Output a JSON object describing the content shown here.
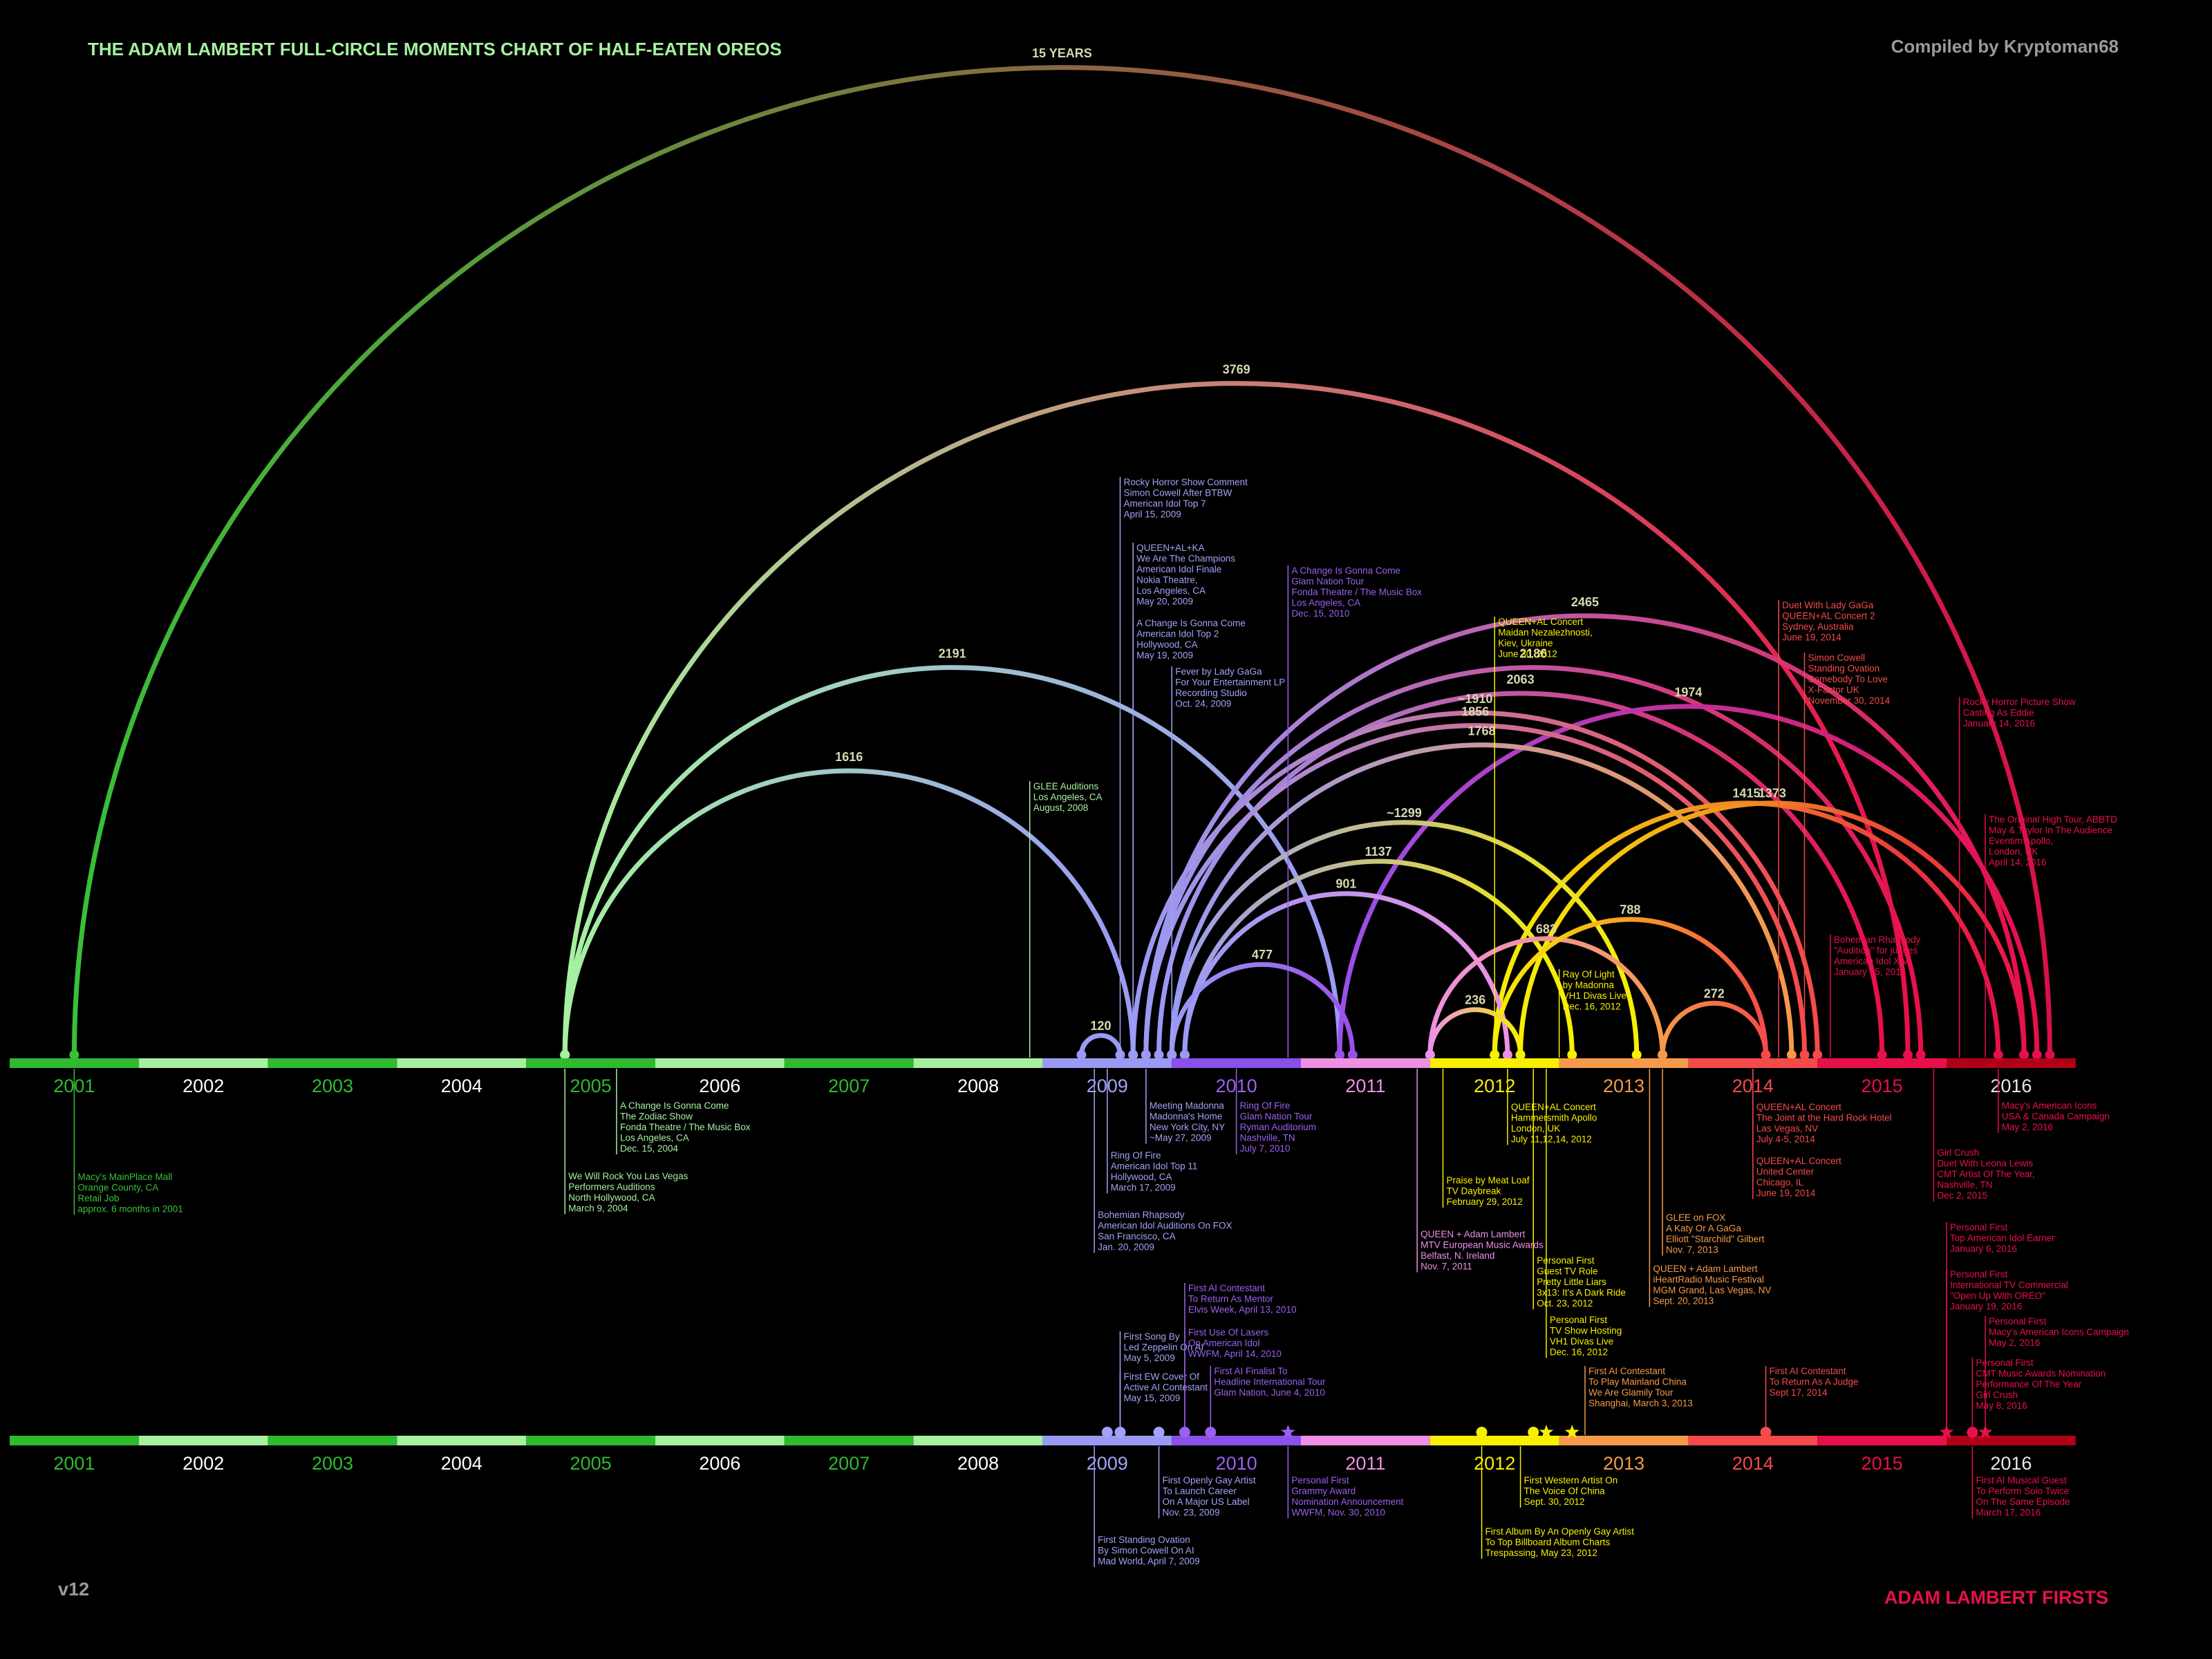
{
  "header": {
    "title": "THE ADAM LAMBERT FULL-CIRCLE MOMENTS CHART OF HALF-EATEN OREOS",
    "credit": "Compiled by Kryptoman68"
  },
  "footer": {
    "version": "v12",
    "firsts_title": "ADAM LAMBERT FIRSTS"
  },
  "years": [
    "2001",
    "2002",
    "2003",
    "2004",
    "2005",
    "2006",
    "2007",
    "2008",
    "2009",
    "2010",
    "2011",
    "2012",
    "2013",
    "2014",
    "2015",
    "2016"
  ],
  "year_colors": [
    "#2fba2f",
    "#a6f0a0",
    "#2fba2f",
    "#a6f0a0",
    "#2fba2f",
    "#a6f0a0",
    "#2fba2f",
    "#a6f0a0",
    "#9a9af4",
    "#8a50ea",
    "#ee90e6",
    "#f8f000",
    "#f59a4a",
    "#f64a4a",
    "#e8104a",
    "#b00018"
  ],
  "year_text_colors": [
    "#2fba2f",
    "#ffffff",
    "#2fba2f",
    "#ffffff",
    "#2fba2f",
    "#ffffff",
    "#2fba2f",
    "#ffffff",
    "#a2a2f8",
    "#9a60f0",
    "#ee90e6",
    "#f8f000",
    "#f59a4a",
    "#f64a4a",
    "#e8104a",
    "#e8e8e8"
  ],
  "arcs": [
    {
      "label": "15 YEARS",
      "from": 2001.0,
      "to": 2016.3,
      "color_from": "#38c038",
      "color_to": "#d8104a"
    },
    {
      "label": "3769",
      "from": 2004.8,
      "to": 2015.2,
      "color_from": "#a6f0a0",
      "color_to": "#e8104a"
    },
    {
      "label": "2191",
      "from": 2004.8,
      "to": 2010.8,
      "color_from": "#a6f0a0",
      "color_to": "#9a9af4"
    },
    {
      "label": "1616",
      "from": 2004.8,
      "to": 2009.2,
      "color_from": "#a6f0a0",
      "color_to": "#9a9af4"
    },
    {
      "label": "2465",
      "from": 2009.3,
      "to": 2016.1,
      "color_from": "#9a9af4",
      "color_to": "#e8104a"
    },
    {
      "label": "2186",
      "from": 2009.3,
      "to": 2015.3,
      "color_from": "#9a9af4",
      "color_to": "#e8104a"
    },
    {
      "label": "2063",
      "from": 2009.4,
      "to": 2015.0,
      "color_from": "#9a9af4",
      "color_to": "#e8104a"
    },
    {
      "label": "1974",
      "from": 2010.8,
      "to": 2016.2,
      "color_from": "#9a50ea",
      "color_to": "#e8104a"
    },
    {
      "label": "~1910",
      "from": 2009.2,
      "to": 2014.5,
      "color_from": "#9a9af4",
      "color_to": "#f64a4a"
    },
    {
      "label": "1856",
      "from": 2009.3,
      "to": 2014.4,
      "color_from": "#9a9af4",
      "color_to": "#f64a4a"
    },
    {
      "label": "1768",
      "from": 2009.5,
      "to": 2014.3,
      "color_from": "#9a9af4",
      "color_to": "#f59a4a"
    },
    {
      "label": "1415",
      "from": 2012.0,
      "to": 2015.9,
      "color_from": "#f8f000",
      "color_to": "#e8104a"
    },
    {
      "label": "1373",
      "from": 2012.2,
      "to": 2016.1,
      "color_from": "#f8f000",
      "color_to": "#e8104a"
    },
    {
      "label": "~1299",
      "from": 2009.5,
      "to": 2013.1,
      "color_from": "#9a9af4",
      "color_to": "#f8f000"
    },
    {
      "label": "1137",
      "from": 2009.6,
      "to": 2012.6,
      "color_from": "#9a9af4",
      "color_to": "#f8f000"
    },
    {
      "label": "901",
      "from": 2009.6,
      "to": 2012.1,
      "color_from": "#9a9af4",
      "color_to": "#ee90e6"
    },
    {
      "label": "683",
      "from": 2011.5,
      "to": 2013.3,
      "color_from": "#ee90e6",
      "color_to": "#f59a4a"
    },
    {
      "label": "788",
      "from": 2012.0,
      "to": 2014.1,
      "color_from": "#f8f000",
      "color_to": "#f64a4a"
    },
    {
      "label": "477",
      "from": 2009.5,
      "to": 2010.9,
      "color_from": "#9a9af4",
      "color_to": "#9a50ea"
    },
    {
      "label": "236",
      "from": 2011.5,
      "to": 2012.2,
      "color_from": "#ee90e6",
      "color_to": "#f8f000"
    },
    {
      "label": "272",
      "from": 2013.3,
      "to": 2014.1,
      "color_from": "#f59a4a",
      "color_to": "#f64a4a"
    },
    {
      "label": "120",
      "from": 2008.8,
      "to": 2009.1,
      "color_from": "#9a9af4",
      "color_to": "#9a9af4"
    }
  ],
  "annotations": [
    {
      "lines": [
        "Macy's MainPlace Mall",
        "Orange County, CA",
        "Retail Job",
        "approx. 6 months in 2001"
      ],
      "color": "#38c038",
      "date": 2001.0,
      "side": "below",
      "anchor": 1707
    },
    {
      "lines": [
        "We Will Rock You Las Vegas",
        "Performers Auditions",
        "North Hollywood, CA",
        "March 9, 2004"
      ],
      "color": "#a6f0a0",
      "date": 2004.8,
      "side": "below",
      "anchor": 1706
    },
    {
      "lines": [
        "A Change Is Gonna Come",
        "The Zodiac Show",
        "Fonda Theatre / The Music Box",
        "Los Angeles, CA",
        "Dec. 15, 2004"
      ],
      "color": "#a6f0a0",
      "date": 2005.2,
      "side": "below",
      "anchor": 1604
    },
    {
      "lines": [
        "GLEE Auditions",
        "Los Angeles, CA",
        "August, 2008"
      ],
      "color": "#a6f0a0",
      "date": 2008.4,
      "side": "above",
      "anchor": 1142
    },
    {
      "lines": [
        "Rocky Horror Show Comment",
        "Simon Cowell After BTBW",
        "American Idol Top 7",
        "April 15, 2009"
      ],
      "color": "#a2a2f8",
      "date": 2009.1,
      "side": "above",
      "anchor": 702
    },
    {
      "lines": [
        "QUEEN+AL+KA",
        "We Are The Champions",
        "American Idol Finale",
        "Nokia Theatre,",
        "Los Angeles, CA",
        "May 20, 2009"
      ],
      "color": "#a2a2f8",
      "date": 2009.2,
      "side": "above",
      "anchor": 797
    },
    {
      "lines": [
        "A Change Is Gonna Come",
        "American Idol Top 2",
        "Hollywood, CA",
        "May 19, 2009"
      ],
      "color": "#a2a2f8",
      "date": 2009.2,
      "side": "above",
      "anchor": 906
    },
    {
      "lines": [
        "Fever by Lady GaGa",
        "For Your Entertainment LP",
        "Recording Studio",
        "Oct. 24, 2009"
      ],
      "color": "#a2a2f8",
      "date": 2009.5,
      "side": "above",
      "anchor": 976
    },
    {
      "lines": [
        "A Change Is Gonna Come",
        "Glam Nation Tour",
        "Fonda Theatre / The Music Box",
        "Los Angeles, CA",
        "Dec. 15, 2010"
      ],
      "color": "#9a60f0",
      "date": 2010.4,
      "side": "above",
      "anchor": 830
    },
    {
      "lines": [
        "QUEEN+AL Concert",
        "Maidan Nezalezhnosti,",
        "Kiev, Ukraine",
        "June 30, 2012"
      ],
      "color": "#f8f000",
      "date": 2012.0,
      "side": "above",
      "anchor": 904
    },
    {
      "lines": [
        "Duet With Lady GaGa",
        "QUEEN+AL Concert 2",
        "Sydney, Australia",
        "June 19, 2014"
      ],
      "color": "#f64a4a",
      "date": 2014.2,
      "side": "above",
      "anchor": 880
    },
    {
      "lines": [
        "Simon Cowell",
        "Standing Ovation",
        "Somebody To Love",
        "X-Factor UK",
        "November 30, 2014"
      ],
      "color": "#f64a4a",
      "date": 2014.4,
      "side": "above",
      "anchor": 956
    },
    {
      "lines": [
        "Rocky Horror Picture Show",
        "Casting As Eddie",
        "January 14, 2016"
      ],
      "color": "#e8104a",
      "date": 2015.6,
      "side": "above",
      "anchor": 1020
    },
    {
      "lines": [
        "The Original High Tour, ABBTD",
        "May & Taylor In The Audience",
        "Eventim Apollo,",
        "London, UK",
        "April 14, 2016"
      ],
      "color": "#e8104a",
      "date": 2015.8,
      "side": "above",
      "anchor": 1190
    },
    {
      "lines": [
        "Bohemian Rhapsody",
        "\"Audition\" for judges",
        "American Idol XIV",
        "January 15, 2015"
      ],
      "color": "#e8104a",
      "date": 2014.6,
      "side": "above",
      "anchor": 1364
    },
    {
      "lines": [
        "Ray Of Light",
        "by Madonna",
        "VH1 Divas Live",
        "Dec. 16, 2012"
      ],
      "color": "#f8f000",
      "date": 2012.5,
      "side": "above",
      "anchor": 1414
    },
    {
      "lines": [
        "Meeting Madonna",
        "Madonna's Home",
        "New York City, NY",
        "~May 27, 2009"
      ],
      "color": "#a2a2f8",
      "date": 2009.3,
      "side": "below",
      "anchor": 1604
    },
    {
      "lines": [
        "Ring Of Fire",
        "Glam Nation Tour",
        "Ryman Auditorium",
        "Nashville, TN",
        "July 7, 2010"
      ],
      "color": "#9a60f0",
      "date": 2010.0,
      "side": "below",
      "anchor": 1604
    },
    {
      "lines": [
        "Ring Of Fire",
        "American Idol Top 11",
        "Hollywood, CA",
        "March 17, 2009"
      ],
      "color": "#a2a2f8",
      "date": 2009.0,
      "side": "below",
      "anchor": 1676
    },
    {
      "lines": [
        "Bohemian Rhapsody",
        "American Idol Auditions On FOX",
        "San Francisco, CA",
        "Jan. 20, 2009"
      ],
      "color": "#a2a2f8",
      "date": 2008.9,
      "side": "below",
      "anchor": 1762
    },
    {
      "lines": [
        "QUEEN+AL Concert",
        "Hammersmith Apollo",
        "London, UK",
        "July 11,12,14, 2012"
      ],
      "color": "#f8f000",
      "date": 2012.1,
      "side": "below",
      "anchor": 1606
    },
    {
      "lines": [
        "Praise by Meat Loaf",
        "TV Daybreak",
        "February 29, 2012"
      ],
      "color": "#f8f000",
      "date": 2011.6,
      "side": "below",
      "anchor": 1712
    },
    {
      "lines": [
        "QUEEN + Adam Lambert",
        "MTV European Music Awards",
        "Belfast, N. Ireland",
        "Nov. 7, 2011"
      ],
      "color": "#ee90e6",
      "date": 2011.4,
      "side": "below",
      "anchor": 1790
    },
    {
      "lines": [
        "Personal First",
        "Guest TV Role",
        "Pretty Little Liars",
        "3x13: It's A Dark Ride",
        "Oct. 23, 2012"
      ],
      "color": "#f8f000",
      "date": 2012.3,
      "side": "below",
      "anchor": 1828
    },
    {
      "lines": [
        "Personal First",
        "TV Show Hosting",
        "VH1 Divas Live",
        "Dec. 16, 2012"
      ],
      "color": "#f8f000",
      "date": 2012.4,
      "side": "below",
      "anchor": 1914
    },
    {
      "lines": [
        "QUEEN+AL Concert",
        "The Joint at the Hard Rock Hotel",
        "Las Vegas, NV",
        "July 4-5, 2014"
      ],
      "color": "#f64a4a",
      "date": 2014.0,
      "side": "below",
      "anchor": 1606
    },
    {
      "lines": [
        "QUEEN+AL Concert",
        "United Center",
        "Chicago, IL",
        "June 19, 2014"
      ],
      "color": "#f64a4a",
      "date": 2014.0,
      "side": "below",
      "anchor": 1684
    },
    {
      "lines": [
        "GLEE on FOX",
        "A Katy Or A GaGa",
        "Elliott \"Starchild\" Gilbert",
        "Nov. 7, 2013"
      ],
      "color": "#f59a4a",
      "date": 2013.3,
      "side": "below",
      "anchor": 1766
    },
    {
      "lines": [
        "QUEEN + Adam Lambert",
        "iHeartRadio Music Festival",
        "MGM Grand, Las Vegas, NV",
        "Sept. 20, 2013"
      ],
      "color": "#f59a4a",
      "date": 2013.2,
      "side": "below",
      "anchor": 1840
    },
    {
      "lines": [
        "Macy's American Icons",
        "USA & Canada Campaign",
        "May 2, 2016"
      ],
      "color": "#e8104a",
      "date": 2015.9,
      "side": "below",
      "anchor": 1604
    },
    {
      "lines": [
        "Girl Crush",
        "Duet With Leona Lewis",
        "CMT Artist Of The Year,",
        "Nashville, TN",
        "Dec 2, 2015"
      ],
      "color": "#e8104a",
      "date": 2015.4,
      "side": "below",
      "anchor": 1672
    }
  ],
  "firsts": [
    {
      "lines": [
        "First Song By",
        "Led Zeppelin On AI",
        "May 5, 2009"
      ],
      "color": "#a2a2f8",
      "date": 2009.1,
      "side": "above",
      "anchor": 1938
    },
    {
      "lines": [
        "First EW Cover Of",
        "Active AI Contestant",
        "May 15, 2009"
      ],
      "color": "#a2a2f8",
      "date": 2009.1,
      "side": "above",
      "anchor": 1996
    },
    {
      "lines": [
        "First AI Contestant",
        "To Return As Mentor",
        "Elvis Week, April 13, 2010"
      ],
      "color": "#9a60f0",
      "date": 2009.6,
      "side": "above",
      "anchor": 1868
    },
    {
      "lines": [
        "First Use Of Lasers",
        "On American Idol",
        "WWFM, April 14, 2010"
      ],
      "color": "#9a60f0",
      "date": 2009.6,
      "side": "above",
      "anchor": 1932
    },
    {
      "lines": [
        "First AI Finalist To",
        "Headline International Tour",
        "Glam Nation, June 4, 2010"
      ],
      "color": "#9a60f0",
      "date": 2009.8,
      "side": "above",
      "anchor": 1988
    },
    {
      "lines": [
        "First AI Contestant",
        "To Play Mainland China",
        "We Are Glamily Tour",
        "Shanghai, March 3, 2013"
      ],
      "color": "#f59a4a",
      "date": 2012.7,
      "side": "above",
      "anchor": 1988
    },
    {
      "lines": [
        "First AI Contestant",
        "To Return As A Judge",
        "Sept 17, 2014"
      ],
      "color": "#f64a4a",
      "date": 2014.1,
      "side": "above",
      "anchor": 1988
    },
    {
      "lines": [
        "Personal First",
        "Top American Idol Earner",
        "January 6, 2016"
      ],
      "color": "#e8104a",
      "date": 2015.5,
      "side": "above",
      "anchor": 1780
    },
    {
      "lines": [
        "Personal First",
        "International TV Commercial",
        "\"Open Up With OREO\"",
        "January 19, 2016"
      ],
      "color": "#e8104a",
      "date": 2015.5,
      "side": "above",
      "anchor": 1848
    },
    {
      "lines": [
        "Personal First",
        "Macy's American Icons Campaign",
        "May 2, 2016"
      ],
      "color": "#e8104a",
      "date": 2015.8,
      "side": "above",
      "anchor": 1916
    },
    {
      "lines": [
        "Personal First",
        "CMT Music Awards Nomination",
        "Performance Of The Year",
        "Girl Crush",
        "May 8, 2016"
      ],
      "color": "#e8104a",
      "date": 2015.7,
      "side": "above",
      "anchor": 1976
    },
    {
      "lines": [
        "First Openly Gay Artist",
        "To Launch Career",
        "On A Major US Label",
        "Nov. 23, 2009"
      ],
      "color": "#a2a2f8",
      "date": 2009.4,
      "side": "below",
      "anchor": 2146
    },
    {
      "lines": [
        "Personal First",
        "Grammy Award",
        "Nomination Announcement",
        "WWFM, Nov. 30, 2010"
      ],
      "color": "#9a60f0",
      "date": 2010.4,
      "side": "below",
      "anchor": 2146
    },
    {
      "lines": [
        "First Standing Ovation",
        "By Simon Cowell On AI",
        "Mad World, April 7, 2009"
      ],
      "color": "#a2a2f8",
      "date": 2008.9,
      "side": "below",
      "anchor": 2232
    },
    {
      "lines": [
        "First Western Artist On",
        "The Voice Of China",
        "Sept. 30, 2012"
      ],
      "color": "#f8f000",
      "date": 2012.2,
      "side": "below",
      "anchor": 2146
    },
    {
      "lines": [
        "First Album By An Openly Gay Artist",
        "To Top Billboard Album Charts",
        "Trespassing, May 23, 2012"
      ],
      "color": "#f8f000",
      "date": 2011.9,
      "side": "below",
      "anchor": 2220
    },
    {
      "lines": [
        "First AI Musical Guest",
        "To Perform Solo Twice",
        "On The Same Episode",
        "March 17, 2016"
      ],
      "color": "#e8104a",
      "date": 2015.7,
      "side": "below",
      "anchor": 2146
    }
  ],
  "firsts_marks": [
    {
      "date": 2009.0,
      "shape": "dot",
      "color": "#a2a2f8"
    },
    {
      "date": 2009.1,
      "shape": "dot",
      "color": "#a2a2f8"
    },
    {
      "date": 2009.4,
      "shape": "dot",
      "color": "#a2a2f8"
    },
    {
      "date": 2009.6,
      "shape": "dot",
      "color": "#9a60f0"
    },
    {
      "date": 2009.8,
      "shape": "dot",
      "color": "#9a60f0"
    },
    {
      "date": 2010.4,
      "shape": "star",
      "color": "#9a60f0"
    },
    {
      "date": 2011.9,
      "shape": "dot",
      "color": "#f8f000"
    },
    {
      "date": 2012.3,
      "shape": "dot",
      "color": "#f8f000"
    },
    {
      "date": 2012.4,
      "shape": "star",
      "color": "#f8f000"
    },
    {
      "date": 2012.6,
      "shape": "star",
      "color": "#f8f000"
    },
    {
      "date": 2014.1,
      "shape": "dot",
      "color": "#f64a4a"
    },
    {
      "date": 2015.5,
      "shape": "star",
      "color": "#e8104a"
    },
    {
      "date": 2015.7,
      "shape": "dot",
      "color": "#e8104a"
    },
    {
      "date": 2015.8,
      "shape": "star",
      "color": "#e8104a"
    }
  ]
}
